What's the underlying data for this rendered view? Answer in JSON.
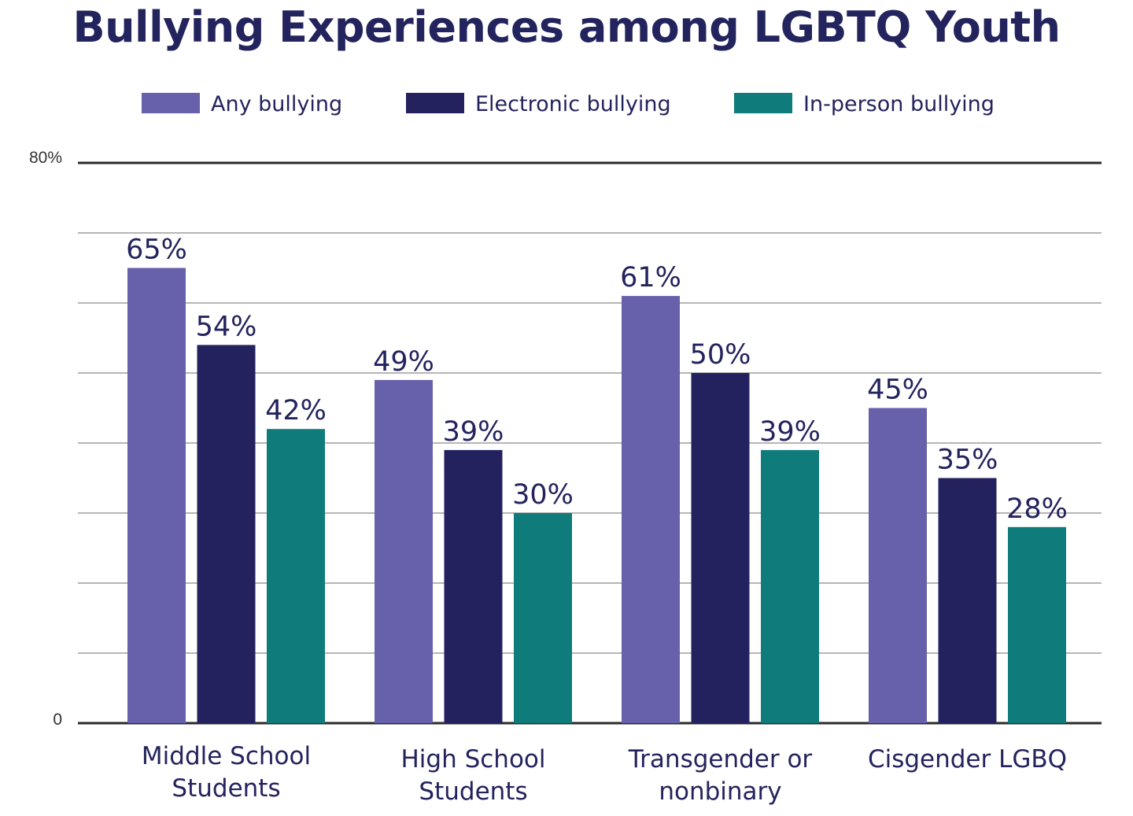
{
  "chart_data": {
    "type": "bar",
    "title": "Bullying Experiences among LGBTQ Youth",
    "categories": [
      [
        "Middle School",
        "Students"
      ],
      [
        "High School",
        "Students"
      ],
      [
        "Transgender or",
        "nonbinary"
      ],
      [
        "Cisgender LGBQ"
      ]
    ],
    "series": [
      {
        "name": "Any bullying",
        "color": "#6760ab",
        "values": [
          65,
          49,
          61,
          45
        ],
        "labels": [
          "65%",
          "49%",
          "61%",
          "45%"
        ]
      },
      {
        "name": "Electronic bullying",
        "color": "#23225e",
        "values": [
          54,
          39,
          50,
          35
        ],
        "labels": [
          "54%",
          "39%",
          "50%",
          "35%"
        ]
      },
      {
        "name": "In-person bullying",
        "color": "#0f7b7b",
        "values": [
          42,
          30,
          39,
          28
        ],
        "labels": [
          "42%",
          "30%",
          "39%",
          "28%"
        ]
      }
    ],
    "ylim": [
      0,
      80
    ],
    "y_tick_labels": {
      "top": "80%",
      "bottom": "0"
    },
    "grid": true,
    "legend_position": "top"
  }
}
